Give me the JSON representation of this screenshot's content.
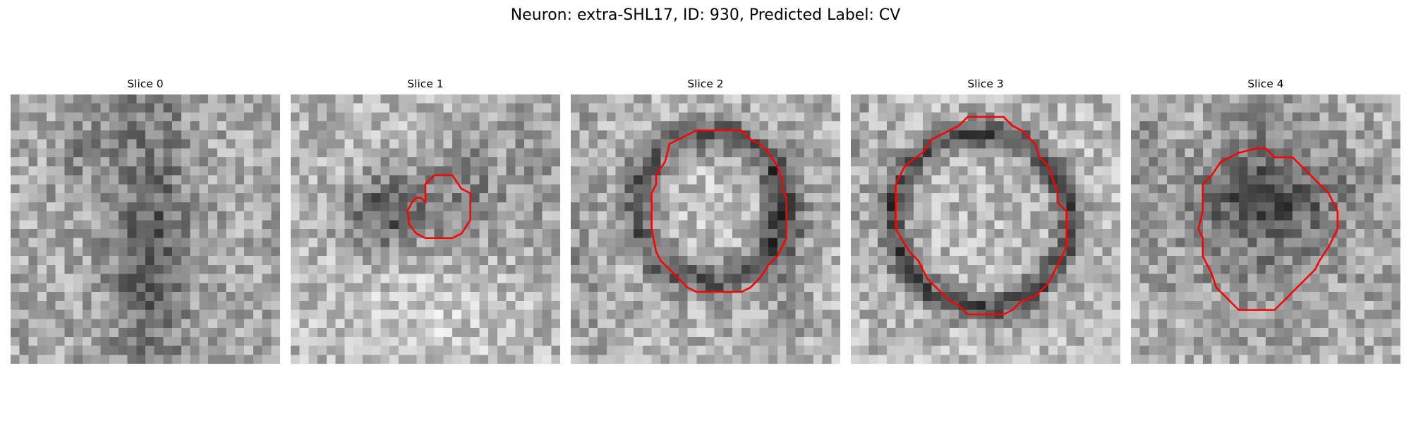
{
  "figure": {
    "title": "Neuron: extra-SHL17, ID: 930, Predicted Label: CV"
  },
  "panels": [
    {
      "title": "Slice 0",
      "contour": []
    },
    {
      "title": "Slice 1",
      "contour": [
        [
          15,
          10
        ],
        [
          16,
          9
        ],
        [
          18,
          9
        ],
        [
          19,
          10.5
        ],
        [
          20,
          11
        ],
        [
          20,
          14
        ],
        [
          19,
          15.5
        ],
        [
          18,
          16
        ],
        [
          15,
          16
        ],
        [
          14,
          15.5
        ],
        [
          13.2,
          14.5
        ],
        [
          13,
          13
        ],
        [
          13.5,
          12
        ],
        [
          14,
          11.5
        ],
        [
          14.5,
          11.5
        ],
        [
          15,
          12
        ]
      ]
    },
    {
      "title": "Slice 2",
      "contour": [
        [
          11,
          5.5
        ],
        [
          12,
          5
        ],
        [
          14,
          4
        ],
        [
          19,
          4
        ],
        [
          20,
          5
        ],
        [
          21,
          5.5
        ],
        [
          22,
          6.5
        ],
        [
          23,
          8
        ],
        [
          23.5,
          9.5
        ],
        [
          23.5,
          10.5
        ],
        [
          24,
          11.5
        ],
        [
          24,
          16
        ],
        [
          23.5,
          17
        ],
        [
          23,
          18
        ],
        [
          22,
          19
        ],
        [
          21,
          20.5
        ],
        [
          20,
          21.5
        ],
        [
          19,
          22
        ],
        [
          14,
          22
        ],
        [
          13,
          21.5
        ],
        [
          12,
          20.5
        ],
        [
          11,
          19.5
        ],
        [
          10,
          18.5
        ],
        [
          9.5,
          17.5
        ],
        [
          9.2,
          16
        ],
        [
          9,
          15
        ],
        [
          9,
          11
        ],
        [
          9.5,
          10
        ],
        [
          9.5,
          9
        ],
        [
          10.5,
          7.5
        ]
      ]
    },
    {
      "title": "Slice 3",
      "contour": [
        [
          11,
          4
        ],
        [
          12,
          3.5
        ],
        [
          13,
          2.5
        ],
        [
          17,
          2.5
        ],
        [
          18,
          3.5
        ],
        [
          19,
          4
        ],
        [
          20.5,
          5.5
        ],
        [
          21,
          7
        ],
        [
          22,
          8
        ],
        [
          22.5,
          9.5
        ],
        [
          23,
          11
        ],
        [
          23,
          12
        ],
        [
          24,
          13
        ],
        [
          24,
          17
        ],
        [
          23.5,
          18
        ],
        [
          23,
          19
        ],
        [
          22.5,
          20
        ],
        [
          22,
          21
        ],
        [
          21,
          22
        ],
        [
          20.5,
          22.5
        ],
        [
          19,
          23
        ],
        [
          18,
          24
        ],
        [
          17,
          24.5
        ],
        [
          13,
          24.5
        ],
        [
          12,
          23.5
        ],
        [
          11,
          23
        ],
        [
          10,
          22
        ],
        [
          9.5,
          21.5
        ],
        [
          8.5,
          20.5
        ],
        [
          8,
          19.5
        ],
        [
          7.5,
          18.5
        ],
        [
          6.5,
          17.5
        ],
        [
          5,
          15
        ],
        [
          5,
          10
        ],
        [
          6,
          8
        ],
        [
          7,
          7.2
        ],
        [
          8,
          6.5
        ],
        [
          9,
          5
        ]
      ]
    },
    {
      "title": "Slice 4",
      "contour": [
        [
          12,
          6.5
        ],
        [
          14,
          6
        ],
        [
          15,
          6
        ],
        [
          16,
          7
        ],
        [
          18,
          7
        ],
        [
          19,
          8
        ],
        [
          20,
          9
        ],
        [
          21,
          10
        ],
        [
          22,
          11
        ],
        [
          22.5,
          12
        ],
        [
          23,
          13
        ],
        [
          23,
          15
        ],
        [
          22,
          17
        ],
        [
          21,
          18.5
        ],
        [
          20.5,
          19.5
        ],
        [
          20,
          20
        ],
        [
          19,
          21
        ],
        [
          18,
          22
        ],
        [
          17,
          23
        ],
        [
          16,
          24
        ],
        [
          12,
          24
        ],
        [
          11,
          23
        ],
        [
          10,
          22
        ],
        [
          9.5,
          21.5
        ],
        [
          9,
          20
        ],
        [
          8,
          18
        ],
        [
          8,
          16
        ],
        [
          7.5,
          15
        ],
        [
          8,
          13
        ],
        [
          8,
          10
        ],
        [
          9,
          9
        ],
        [
          10,
          7.5
        ],
        [
          11,
          7
        ]
      ]
    }
  ]
}
